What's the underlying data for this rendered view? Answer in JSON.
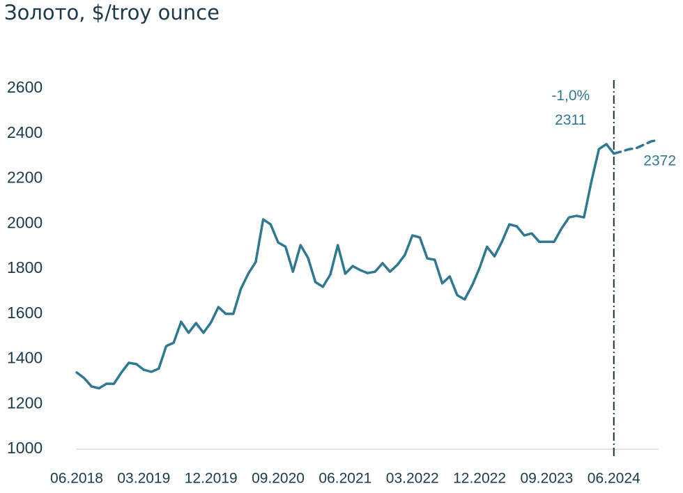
{
  "chart_data": {
    "type": "line",
    "title": "Золото, $/troy ounce",
    "annotations": [
      "-1,0%"
    ],
    "categories": [
      "06.2018",
      null,
      null,
      null,
      null,
      null,
      null,
      null,
      null,
      "03.2019",
      null,
      null,
      null,
      null,
      null,
      null,
      null,
      null,
      "12.2019",
      null,
      null,
      null,
      null,
      null,
      null,
      null,
      null,
      "09.2020",
      null,
      null,
      null,
      null,
      null,
      null,
      null,
      null,
      "06.2021",
      null,
      null,
      null,
      null,
      null,
      null,
      null,
      null,
      "03.2022",
      null,
      null,
      null,
      null,
      null,
      null,
      null,
      null,
      "12.2022",
      null,
      null,
      null,
      null,
      null,
      null,
      null,
      null,
      "09.2023",
      null,
      null,
      null,
      null,
      null,
      null,
      null,
      null,
      "06.2024",
      null,
      null,
      null,
      null,
      null,
      null
    ],
    "series": [
      {
        "color": "#2f7891",
        "dashed": false,
        "values": [
          1340,
          1315,
          1278,
          1270,
          1290,
          1290,
          1340,
          1383,
          1377,
          1352,
          1343,
          1357,
          1457,
          1472,
          1565,
          1516,
          1559,
          1516,
          1562,
          1630,
          1600,
          1600,
          1710,
          1778,
          1830,
          2019,
          1997,
          1917,
          1898,
          1787,
          1905,
          1849,
          1741,
          1720,
          1775,
          1905,
          1778,
          1812,
          1794,
          1781,
          1787,
          1825,
          1787,
          1818,
          1862,
          1948,
          1939,
          1846,
          1840,
          1735,
          1766,
          1683,
          1664,
          1726,
          1803,
          1898,
          1855,
          1920,
          1997,
          1988,
          1948,
          1957,
          1920,
          1920,
          1920,
          1979,
          2028,
          2035,
          2028,
          2189,
          2331,
          2353,
          2311,
          null,
          null,
          null,
          null,
          null,
          null
        ]
      },
      {
        "color": "#2f7891",
        "dashed": true,
        "values": [
          null,
          null,
          null,
          null,
          null,
          null,
          null,
          null,
          null,
          null,
          null,
          null,
          null,
          null,
          null,
          null,
          null,
          null,
          null,
          null,
          null,
          null,
          null,
          null,
          null,
          null,
          null,
          null,
          null,
          null,
          null,
          null,
          null,
          null,
          null,
          null,
          null,
          null,
          null,
          null,
          null,
          null,
          null,
          null,
          null,
          null,
          null,
          null,
          null,
          null,
          null,
          null,
          null,
          null,
          null,
          null,
          null,
          null,
          null,
          null,
          null,
          null,
          null,
          null,
          null,
          null,
          null,
          null,
          null,
          null,
          null,
          null,
          2311,
          2320,
          2330,
          2335,
          2350,
          2365,
          2372
        ]
      }
    ],
    "ylim": [
      1000,
      2600
    ],
    "yticks": [
      1000,
      1200,
      1400,
      1600,
      1800,
      2000,
      2200,
      2400,
      2600
    ],
    "grid": false
  }
}
